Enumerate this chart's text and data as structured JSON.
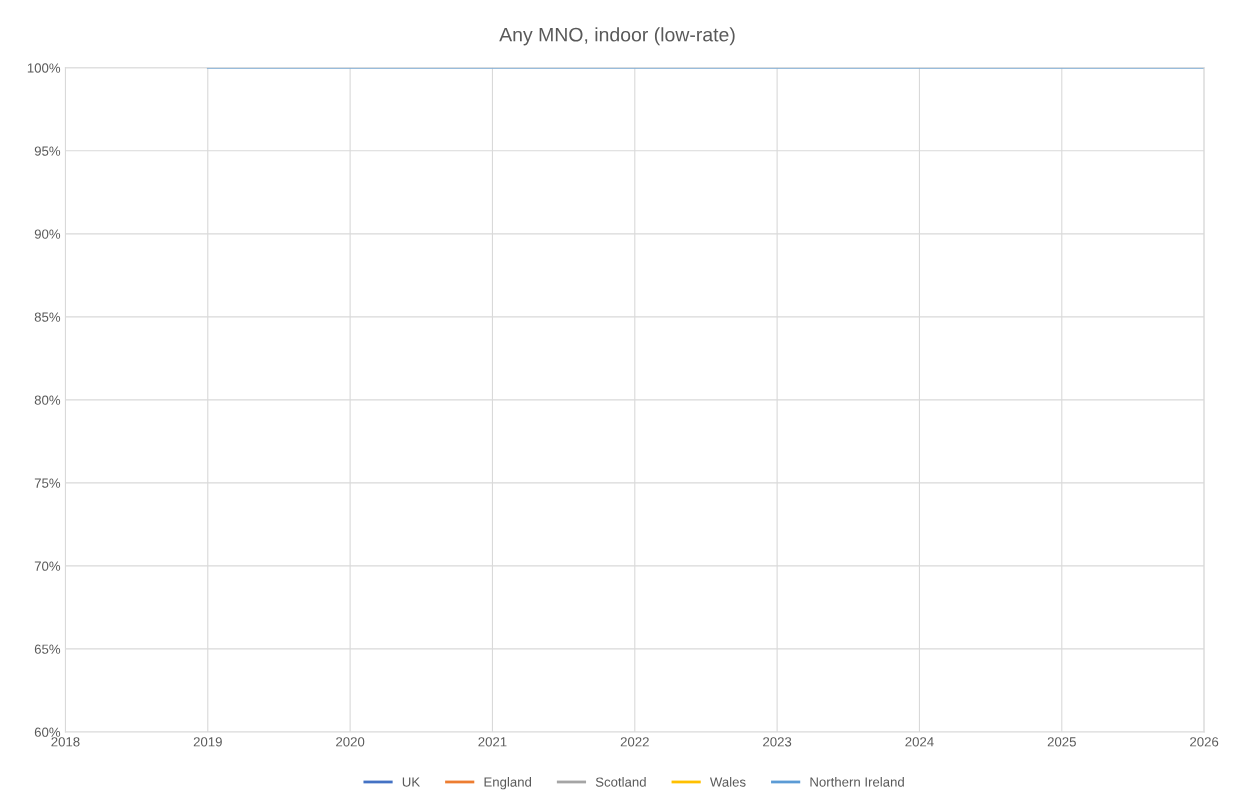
{
  "chart_data": {
    "type": "line",
    "title": "Any MNO, indoor (low-rate)",
    "x": [
      2019,
      2026
    ],
    "series": [
      {
        "name": "UK",
        "color": "#4472c4",
        "values": [
          null,
          null
        ]
      },
      {
        "name": "England",
        "color": "#ed7d31",
        "values": [
          null,
          null
        ]
      },
      {
        "name": "Scotland",
        "color": "#a5a5a5",
        "values": [
          null,
          null
        ]
      },
      {
        "name": "Wales",
        "color": "#ffc000",
        "values": [
          null,
          null
        ]
      },
      {
        "name": "Northern Ireland",
        "color": "#5b9bd5",
        "values": [
          100,
          100
        ]
      }
    ],
    "xlim": [
      2018,
      2026
    ],
    "xticks": [
      2018,
      2019,
      2020,
      2021,
      2022,
      2023,
      2024,
      2025,
      2026
    ],
    "ylim": [
      60,
      100
    ],
    "yticks": [
      {
        "value": 60,
        "label": "60%"
      },
      {
        "value": 65,
        "label": "65%"
      },
      {
        "value": 70,
        "label": "70%"
      },
      {
        "value": 75,
        "label": "75%"
      },
      {
        "value": 80,
        "label": "80%"
      },
      {
        "value": 85,
        "label": "85%"
      },
      {
        "value": 90,
        "label": "90%"
      },
      {
        "value": 95,
        "label": "95%"
      },
      {
        "value": 100,
        "label": "100%"
      }
    ],
    "grid": true,
    "legend": "bottom",
    "marker": "none",
    "line_style": "solid"
  }
}
